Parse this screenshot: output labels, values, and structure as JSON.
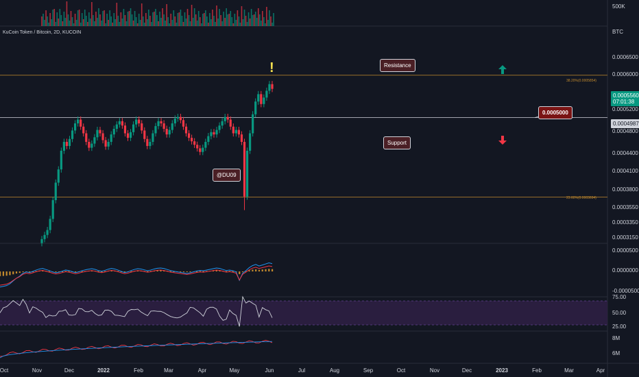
{
  "header": {
    "symbol": "KuCoin Token / Bitcoin, 2D, KUCOIN",
    "unit": "BTC"
  },
  "volume_axis": {
    "label": "500K"
  },
  "price_tags": {
    "last_price": "0.0005560",
    "countdown": "07:01:38",
    "level": "0.0004987"
  },
  "annotations": {
    "resistance": "Resistance",
    "support": "Support",
    "author": "@DU09",
    "price_callout": "0.0005000",
    "exclamation": "!",
    "up_arrow_icon": "arrow-up-icon",
    "down_arrow_icon": "arrow-down-icon"
  },
  "fib_levels": {
    "upper": "38.20%(0.0005854)",
    "lower": "23.60%(0.0003694)"
  },
  "y_ticks_price": [
    "0.0006500",
    "0.0006000",
    "0.0005200",
    "0.0004800",
    "0.0004400",
    "0.0004100",
    "0.0003800",
    "0.0003550",
    "0.0003350",
    "0.0003150"
  ],
  "y_ticks_macd": [
    "0.0000500",
    "0.0000000",
    "-0.0000500"
  ],
  "y_ticks_rsi": [
    "75.00",
    "50.00",
    "25.00"
  ],
  "y_ticks_obv": [
    "8M",
    "6M"
  ],
  "x_ticks": [
    "Oct",
    "Nov",
    "Dec",
    "2022",
    "Feb",
    "Mar",
    "Apr",
    "May",
    "Jun",
    "Jul",
    "Aug",
    "Sep",
    "Oct",
    "Nov",
    "Dec",
    "2023",
    "Feb",
    "Mar",
    "Apr"
  ],
  "colors": {
    "background": "#131722",
    "up": "#089981",
    "down": "#f23645",
    "fib": "#c38a2d",
    "macd": "#2196f3",
    "signal": "#f23645",
    "rsi": "#d1d4dc",
    "rsi_band": "#2a1e3f"
  },
  "chart_data": {
    "type": "candlestick",
    "panes": [
      "volume",
      "price",
      "macd",
      "rsi",
      "obv"
    ],
    "price_scale": "log",
    "price_closes": [
      0.000315,
      0.00032,
      0.000326,
      0.00034,
      0.000365,
      0.00039,
      0.00041,
      0.00044,
      0.000455,
      0.000448,
      0.00046,
      0.000475,
      0.000488,
      0.000495,
      0.000482,
      0.00047,
      0.000455,
      0.000445,
      0.000452,
      0.000463,
      0.000476,
      0.00047,
      0.000458,
      0.000447,
      0.000455,
      0.000468,
      0.000478,
      0.000486,
      0.000492,
      0.000484,
      0.00047,
      0.000462,
      0.000472,
      0.000486,
      0.000495,
      0.000488,
      0.000475,
      0.00046,
      0.000448,
      0.000455,
      0.00047,
      0.000483,
      0.000492,
      0.000488,
      0.000478,
      0.000468,
      0.000476,
      0.000488,
      0.000497,
      0.0005,
      0.000494,
      0.000482,
      0.00047,
      0.000462,
      0.000456,
      0.00045,
      0.000444,
      0.000438,
      0.000445,
      0.000455,
      0.000465,
      0.000472,
      0.000468,
      0.000476,
      0.000484,
      0.000492,
      0.0005,
      0.000495,
      0.000482,
      0.00047,
      0.000476,
      0.000468,
      0.000455,
      0.00037,
      0.00044,
      0.00047,
      0.000505,
      0.00053,
      0.000545,
      0.000525,
      0.000538,
      0.000552,
      0.000566,
      0.000556
    ],
    "horizontal_levels": [
      0.0005854,
      0.0004987,
      0.0003694
    ],
    "fib_labels": [
      "38.20%(0.0005854)",
      "23.60%(0.0003694)"
    ],
    "rsi_range": [
      25,
      75
    ],
    "x_axis": [
      "Oct",
      "Nov",
      "Dec",
      "2022",
      "Feb",
      "Mar",
      "Apr",
      "May",
      "Jun",
      "Jul",
      "Aug",
      "Sep",
      "Oct",
      "Nov",
      "Dec",
      "2023",
      "Feb",
      "Mar",
      "Apr"
    ],
    "ylabel": "BTC"
  }
}
